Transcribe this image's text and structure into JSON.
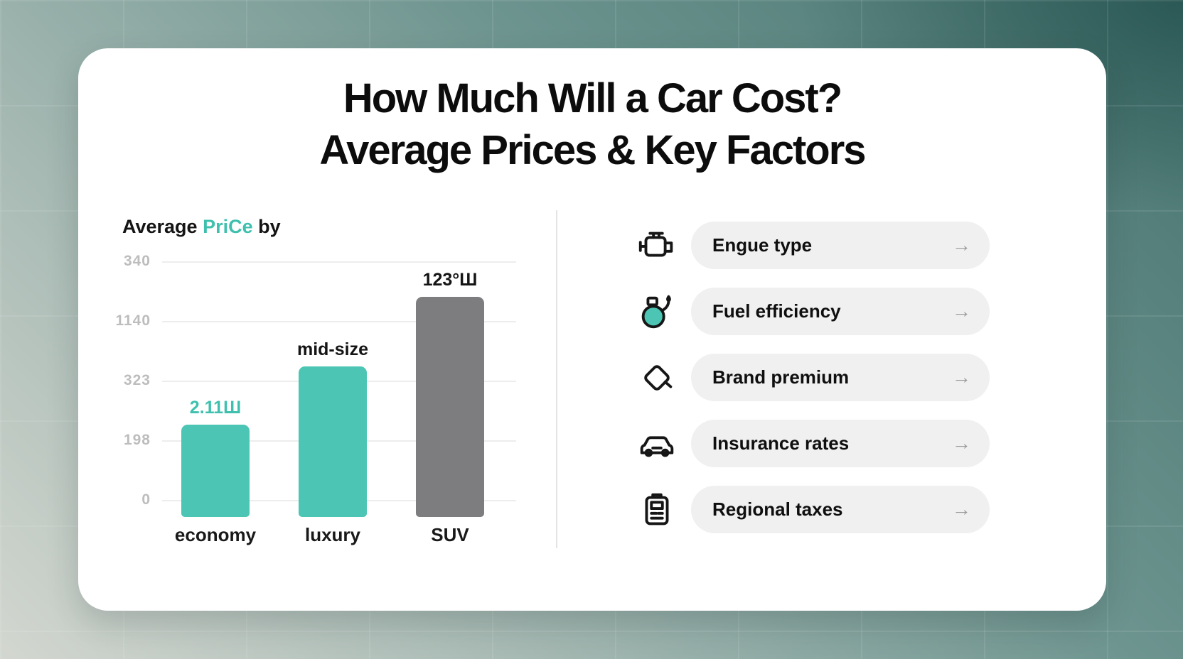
{
  "title": {
    "line1": "How Much Will a Car Cost?",
    "line2": "Average Prices & Key Factors"
  },
  "chart": {
    "title_prefix": "Average ",
    "title_accent": "PriCe",
    "title_suffix": " by"
  },
  "chart_data": {
    "type": "bar",
    "title": "Average PriCe by",
    "categories": [
      "economy",
      "luxury",
      "SUV"
    ],
    "values": [
      0.36,
      0.59,
      0.86
    ],
    "value_scale": "fraction of plotted y-axis height (axis tick labels are stylized/garbled)",
    "value_labels": [
      "2.11Ш",
      "mid-size",
      "123°Ш"
    ],
    "value_label_colors": [
      "#3fc0ae",
      "#141414",
      "#141414"
    ],
    "bar_colors": [
      "#4cc5b5",
      "#4cc5b5",
      "#7d7d7f"
    ],
    "y_ticks_top_to_bottom": [
      "340",
      "1140",
      "323",
      "198",
      "0"
    ],
    "grid": true,
    "legend": false,
    "xlabel": "",
    "ylabel": ""
  },
  "factors": {
    "items": [
      {
        "label": "Engue type",
        "icon": "engine-icon"
      },
      {
        "label": "Fuel efficiency",
        "icon": "fuel-icon"
      },
      {
        "label": "Brand premium",
        "icon": "price-tag-icon"
      },
      {
        "label": "Insurance rates",
        "icon": "car-icon"
      },
      {
        "label": "Regional taxes",
        "icon": "calculator-icon"
      }
    ]
  },
  "ui": {
    "arrow": "→",
    "accent_color": "#3fc0ae",
    "bar_gray": "#7d7d7f",
    "card_background": "#ffffff"
  }
}
